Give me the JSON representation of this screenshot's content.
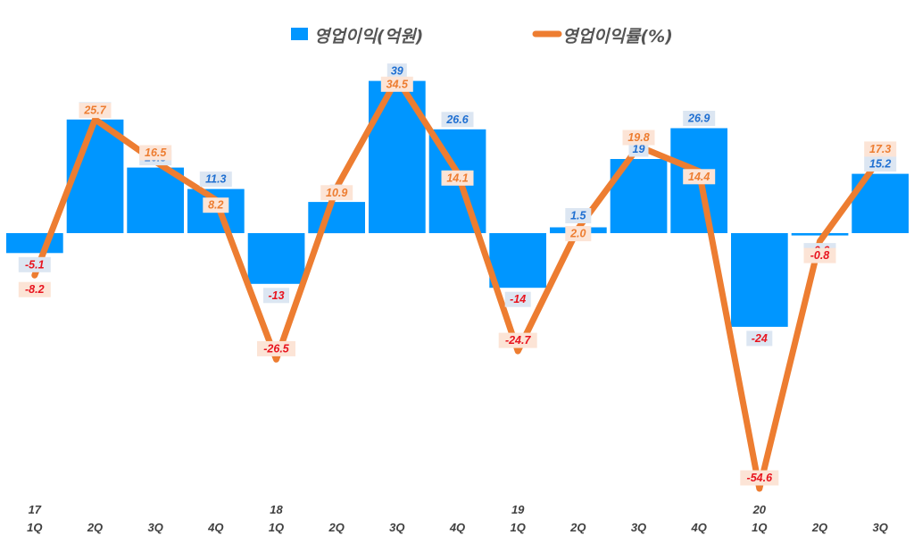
{
  "chart_data": {
    "type": "bar+line",
    "title": "",
    "categories": [
      "1Q",
      "2Q",
      "3Q",
      "4Q",
      "1Q",
      "2Q",
      "3Q",
      "4Q",
      "1Q",
      "2Q",
      "3Q",
      "4Q",
      "1Q",
      "2Q",
      "3Q"
    ],
    "year_labels": [
      "17",
      "",
      "",
      "",
      "18",
      "",
      "",
      "",
      "19",
      "",
      "",
      "",
      "20",
      "",
      ""
    ],
    "series": [
      {
        "name": "영업이익(억원)",
        "type": "bar",
        "axis": "left",
        "color": "#0096FF",
        "values": [
          -5.1,
          29.1,
          16.8,
          11.3,
          -13,
          8,
          39,
          26.6,
          -14,
          1.5,
          19,
          26.9,
          -24,
          -0.6,
          15.2
        ],
        "labels": [
          "-5.1",
          "29.1",
          "16.8",
          "11.3",
          "-13",
          "8",
          "39",
          "26.6",
          "-14",
          "1.5",
          "19",
          "26.9",
          "-24",
          "-0.6",
          "15.2"
        ]
      },
      {
        "name": "영업이익률(%)",
        "type": "line",
        "axis": "right",
        "color": "#ED7D31",
        "values": [
          -8.2,
          25.7,
          16.5,
          8.2,
          -26.5,
          10.9,
          34.5,
          14.1,
          -24.7,
          2.0,
          19.8,
          14.4,
          -54.6,
          -0.8,
          17.3
        ],
        "labels": [
          "-8.2",
          "25.7",
          "16.5",
          "8.2",
          "-26.5",
          "10.9",
          "34.5",
          "14.1",
          "-24.7",
          "2.0",
          "19.8",
          "14.4",
          "-54.6",
          "-0.8",
          "17.3"
        ]
      }
    ],
    "y_left_range": [
      -73,
      46
    ],
    "y_right_range": [
      -61,
      40
    ],
    "label_colors": {
      "bar_positive": "#1F6FD1",
      "negative": "#E8141F",
      "line_positive": "#ED7D31",
      "bar_label_bg": "#DCE6F2",
      "line_label_bg": "#FCE4D6"
    },
    "xlabel": "",
    "ylabel": "",
    "grid": false,
    "legend_position": "top-center"
  }
}
